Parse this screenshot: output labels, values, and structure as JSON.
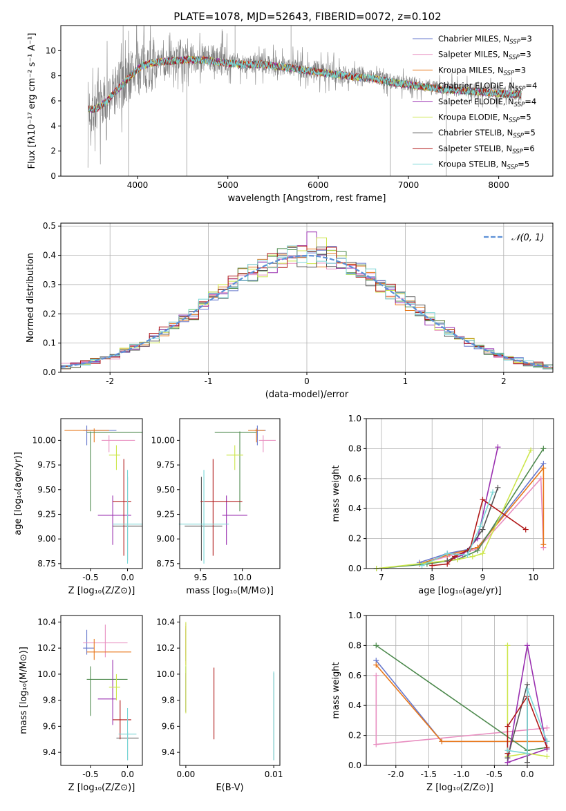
{
  "title": "PLATE=1078, MJD=52643, FIBERID=0072, z=0.102",
  "colors": [
    "#6677cc",
    "#e88ec0",
    "#e8771a",
    "#4e8a4e",
    "#9a30b0",
    "#cce64a",
    "#555555",
    "#b01818",
    "#7ad6d6"
  ],
  "chart_data": [
    {
      "type": "line",
      "panel": "spectrum",
      "title": "PLATE=1078, MJD=52643, FIBERID=0072, z=0.102",
      "xlabel": "wavelength [Angstrom, rest frame]",
      "ylabel": "Flux [f_λ10^-17 erg cm^-2 s^-1 A^-1]",
      "xlim": [
        3150,
        8600
      ],
      "ylim": [
        0,
        12
      ],
      "xticks": [
        4000,
        5000,
        6000,
        7000,
        8000
      ],
      "yticks": [
        0,
        2,
        4,
        6,
        8,
        10
      ],
      "legend_position": "right",
      "legend": [
        "Chabrier MILES, N_SSP=3",
        "Salpeter MILES, N_SSP=3",
        "Kroupa MILES, N_SSP=3",
        "Chabrier ELODIE, N_SSP=4",
        "Salpeter ELODIE, N_SSP=4",
        "Kroupa ELODIE, N_SSP=5",
        "Chabrier STELIB, N_SSP=5",
        "Salpeter STELIB, N_SSP=6",
        "Kroupa STELIB, N_SSP=5"
      ],
      "data_curve": {
        "x": [
          3450,
          3550,
          3650,
          3750,
          3850,
          3950,
          4050,
          4150,
          4250,
          4400,
          4600,
          4800,
          5000,
          5200,
          5400,
          5600,
          5800,
          6000,
          6200,
          6400,
          6600,
          6800,
          7000,
          7200,
          7400,
          7600,
          7800,
          8000,
          8200
        ],
        "y": [
          5.4,
          5.5,
          6.0,
          6.8,
          7.5,
          8.3,
          8.8,
          8.9,
          9.0,
          9.2,
          9.4,
          9.3,
          9.1,
          9.0,
          9.0,
          8.8,
          8.6,
          8.4,
          8.2,
          8.0,
          7.9,
          7.6,
          7.4,
          7.2,
          7.0,
          6.9,
          6.8,
          6.7,
          6.6
        ]
      },
      "model_curve": {
        "x": [
          3450,
          3550,
          3650,
          3750,
          3850,
          3950,
          4050,
          4150,
          4250,
          4400,
          4600,
          4800,
          5000,
          5200,
          5400,
          5600,
          5800,
          6000,
          6200,
          6400,
          6600,
          6800,
          7000,
          7200,
          7400,
          7600,
          7800,
          8000,
          8200
        ],
        "y": [
          5.3,
          5.4,
          5.9,
          6.7,
          7.4,
          8.2,
          8.8,
          9.0,
          9.1,
          9.2,
          9.3,
          9.2,
          9.0,
          8.9,
          8.9,
          8.7,
          8.5,
          8.3,
          8.1,
          7.9,
          7.8,
          7.5,
          7.3,
          7.1,
          6.9,
          6.8,
          6.7,
          6.6,
          6.5
        ]
      }
    },
    {
      "type": "histogram",
      "panel": "residuals",
      "xlabel": "(data-model)/error",
      "ylabel": "Normed distribution",
      "xlim": [
        -2.5,
        2.5
      ],
      "ylim": [
        0,
        0.51
      ],
      "xticks": [
        -2,
        -1,
        0,
        1,
        2
      ],
      "yticks": [
        0.0,
        0.1,
        0.2,
        0.3,
        0.4,
        0.5
      ],
      "grid": true,
      "legend": [
        "𝒩(0, 1)"
      ],
      "legend_position": "top-right",
      "bin_width": 0.1
    },
    {
      "type": "errorbar",
      "panel": "age-vs-Z",
      "xlabel": "Z [log10(Z/Z⊙)]",
      "ylabel": "age [log10(age/yr)]",
      "xlim": [
        -0.9,
        0.2
      ],
      "ylim": [
        8.7,
        10.22
      ],
      "xticks": [
        -0.5,
        0.0
      ],
      "yticks": [
        8.75,
        9.0,
        9.25,
        9.5,
        9.75,
        10.0
      ],
      "points": [
        {
          "x": -0.55,
          "y": 10.1,
          "xerr": [
            0.05,
            0.4
          ],
          "yerr": [
            0.15,
            0.05
          ]
        },
        {
          "x": -0.25,
          "y": 10.0,
          "xerr": [
            0.1,
            0.35
          ],
          "yerr": [
            0.12,
            0.05
          ]
        },
        {
          "x": -0.45,
          "y": 10.1,
          "xerr": [
            0.4,
            0.2
          ],
          "yerr": [
            0.12,
            0.02
          ]
        },
        {
          "x": -0.5,
          "y": 10.08,
          "xerr": [
            0.05,
            0.7
          ],
          "yerr": [
            0.8,
            0.01
          ]
        },
        {
          "x": -0.2,
          "y": 9.24,
          "xerr": [
            0.2,
            0.25
          ],
          "yerr": [
            0.3,
            0.2
          ]
        },
        {
          "x": -0.15,
          "y": 9.85,
          "xerr": [
            0.1,
            0.05
          ],
          "yerr": [
            0.15,
            0.1
          ]
        },
        {
          "x": 0.0,
          "y": 9.13,
          "xerr": [
            0.2,
            0.2
          ],
          "yerr": [
            0.35,
            0.5
          ]
        },
        {
          "x": -0.05,
          "y": 9.38,
          "xerr": [
            0.15,
            0.1
          ],
          "yerr": [
            0.55,
            0.43
          ]
        },
        {
          "x": 0.0,
          "y": 9.15,
          "xerr": [
            0.2,
            0.2
          ],
          "yerr": [
            0.4,
            0.55
          ]
        }
      ]
    },
    {
      "type": "errorbar",
      "panel": "age-vs-mass",
      "xlabel": "mass [log10(M/M⊙)]",
      "ylabel": "",
      "xlim": [
        9.25,
        10.45
      ],
      "ylim": [
        8.7,
        10.22
      ],
      "xticks": [
        9.5,
        10.0
      ],
      "yticks": [
        8.75,
        9.0,
        9.25,
        9.5,
        9.75,
        10.0
      ],
      "points": [
        {
          "x": 10.18,
          "y": 10.1,
          "xerr": [
            0.03,
            0.1
          ],
          "yerr": [
            0.15,
            0.05
          ]
        },
        {
          "x": 10.25,
          "y": 10.0,
          "xerr": [
            0.05,
            0.15
          ],
          "yerr": [
            0.12,
            0.05
          ]
        },
        {
          "x": 10.17,
          "y": 10.1,
          "xerr": [
            0.1,
            0.1
          ],
          "yerr": [
            0.12,
            0.02
          ]
        },
        {
          "x": 9.97,
          "y": 10.08,
          "xerr": [
            0.3,
            0.2
          ],
          "yerr": [
            0.8,
            0.01
          ]
        },
        {
          "x": 9.81,
          "y": 9.24,
          "xerr": [
            0.05,
            0.25
          ],
          "yerr": [
            0.3,
            0.2
          ]
        },
        {
          "x": 9.91,
          "y": 9.85,
          "xerr": [
            0.1,
            0.1
          ],
          "yerr": [
            0.15,
            0.1
          ]
        },
        {
          "x": 9.51,
          "y": 9.13,
          "xerr": [
            0.2,
            0.25
          ],
          "yerr": [
            0.35,
            0.5
          ]
        },
        {
          "x": 9.65,
          "y": 9.38,
          "xerr": [
            0.15,
            0.35
          ],
          "yerr": [
            0.55,
            0.43
          ]
        },
        {
          "x": 9.54,
          "y": 9.15,
          "xerr": [
            0.3,
            0.3
          ],
          "yerr": [
            0.4,
            0.55
          ]
        }
      ]
    },
    {
      "type": "line",
      "panel": "weight-vs-age",
      "xlabel": "age [log10(age/yr)]",
      "ylabel": "mass weight",
      "xlim": [
        6.7,
        10.4
      ],
      "ylim": [
        0,
        1.0
      ],
      "xticks": [
        7,
        8,
        9,
        10
      ],
      "yticks": [
        0.0,
        0.2,
        0.4,
        0.6,
        0.8,
        1.0
      ],
      "grid": true,
      "series": [
        {
          "x": [
            7.75,
            8.3,
            8.9,
            10.2
          ],
          "y": [
            0.04,
            0.1,
            0.14,
            0.7
          ]
        },
        {
          "x": [
            7.75,
            8.3,
            8.9,
            10.15,
            10.2
          ],
          "y": [
            0.03,
            0.08,
            0.13,
            0.6,
            0.14
          ]
        },
        {
          "x": [
            7.75,
            8.3,
            8.9,
            10.2,
            10.2
          ],
          "y": [
            0.03,
            0.09,
            0.14,
            0.67,
            0.16
          ]
        },
        {
          "x": [
            6.9,
            7.9,
            8.5,
            8.9,
            10.2
          ],
          "y": [
            0.0,
            0.03,
            0.06,
            0.12,
            0.8
          ]
        },
        {
          "x": [
            8.3,
            8.6,
            8.9,
            9.3
          ],
          "y": [
            0.05,
            0.09,
            0.2,
            0.81
          ]
        },
        {
          "x": [
            6.9,
            8.5,
            8.8,
            9.0,
            9.95
          ],
          "y": [
            0.0,
            0.06,
            0.08,
            0.1,
            0.79
          ]
        },
        {
          "x": [
            8.3,
            8.45,
            8.7,
            9.0,
            9.3
          ],
          "y": [
            0.05,
            0.08,
            0.12,
            0.26,
            0.54
          ]
        },
        {
          "x": [
            8.0,
            8.3,
            8.45,
            8.75,
            9.0,
            9.85
          ],
          "y": [
            0.02,
            0.03,
            0.08,
            0.13,
            0.46,
            0.26
          ]
        },
        {
          "x": [
            7.8,
            8.3,
            8.7,
            8.95,
            9.2
          ],
          "y": [
            0.02,
            0.1,
            0.09,
            0.28,
            0.51
          ]
        }
      ]
    },
    {
      "type": "errorbar",
      "panel": "mass-vs-Z",
      "xlabel": "Z [log10(Z/Z⊙)]",
      "ylabel": "mass [log10(M/M⊙)]",
      "xlim": [
        -0.9,
        0.2
      ],
      "ylim": [
        9.3,
        10.45
      ],
      "xticks": [
        -0.5,
        0.0
      ],
      "yticks": [
        9.4,
        9.6,
        9.8,
        10.0,
        10.2,
        10.4
      ],
      "points": [
        {
          "x": -0.55,
          "y": 10.2,
          "xerr": [
            0.05,
            0.1
          ],
          "yerr": [
            0.05,
            0.14
          ]
        },
        {
          "x": -0.3,
          "y": 10.24,
          "xerr": [
            0.3,
            0.3
          ],
          "yerr": [
            0.11,
            0.14
          ]
        },
        {
          "x": -0.45,
          "y": 10.17,
          "xerr": [
            0.1,
            0.5
          ],
          "yerr": [
            0.06,
            0.1
          ]
        },
        {
          "x": -0.5,
          "y": 9.96,
          "xerr": [
            0.05,
            0.5
          ],
          "yerr": [
            0.28,
            0.1
          ]
        },
        {
          "x": -0.2,
          "y": 9.81,
          "xerr": [
            0.2,
            0.05
          ],
          "yerr": [
            0.2,
            0.3
          ]
        },
        {
          "x": -0.15,
          "y": 9.9,
          "xerr": [
            0.1,
            0.05
          ],
          "yerr": [
            0.1,
            0.1
          ]
        },
        {
          "x": 0.0,
          "y": 9.51,
          "xerr": [
            0.15,
            0.15
          ],
          "yerr": [
            0.17,
            0.05
          ]
        },
        {
          "x": -0.1,
          "y": 9.65,
          "xerr": [
            0.1,
            0.15
          ],
          "yerr": [
            0.15,
            0.15
          ]
        },
        {
          "x": 0.0,
          "y": 9.54,
          "xerr": [
            0.12,
            0.12
          ],
          "yerr": [
            0.2,
            0.2
          ]
        }
      ]
    },
    {
      "type": "errorbar",
      "panel": "mass-vs-EBV",
      "xlabel": "E(B-V)",
      "ylabel": "",
      "xlim": [
        -0.0007,
        0.0107
      ],
      "ylim": [
        9.3,
        10.45
      ],
      "xticks": [
        0.0,
        0.01
      ],
      "yticks": [
        9.4,
        9.6,
        9.8,
        10.0,
        10.2,
        10.4
      ],
      "points": [
        {
          "x": 0.0,
          "y": 10.2,
          "yerr": [
            0.1,
            0.15
          ]
        },
        {
          "x": 0.0,
          "y": 10.24,
          "yerr": [
            0.1,
            0.15
          ]
        },
        {
          "x": 0.0,
          "y": 10.17,
          "yerr": [
            0.1,
            0.2
          ]
        },
        {
          "x": 0.0,
          "y": 9.96,
          "yerr": [
            0.25,
            0.1
          ]
        },
        {
          "x": 0.0,
          "y": 9.81,
          "yerr": [
            0.1,
            0.2
          ]
        },
        {
          "x": 0.0,
          "y": 9.9,
          "yerr": [
            0.2,
            0.5
          ]
        },
        {
          "x": 0.01,
          "y": 9.51,
          "yerr": [
            0.17,
            0.5
          ]
        },
        {
          "x": 0.0032,
          "y": 9.78,
          "yerr": [
            0.28,
            0.27
          ]
        },
        {
          "x": 0.01,
          "y": 9.54,
          "yerr": [
            0.2,
            0.48
          ]
        }
      ]
    },
    {
      "type": "line",
      "panel": "weight-vs-Z",
      "xlabel": "Z [log10(Z/Z⊙)]",
      "ylabel": "mass weight",
      "xlim": [
        -2.45,
        0.4
      ],
      "ylim": [
        0,
        1.0
      ],
      "xticks": [
        -2.0,
        -1.5,
        -1.0,
        -0.5,
        0.0
      ],
      "yticks": [
        0.0,
        0.2,
        0.4,
        0.6,
        0.8,
        1.0
      ],
      "grid": true,
      "series": [
        {
          "x": [
            -2.3,
            -1.3,
            0.3
          ],
          "y": [
            0.7,
            0.16,
            0.16
          ]
        },
        {
          "x": [
            -2.3,
            -2.3,
            0.3
          ],
          "y": [
            0.6,
            0.14,
            0.25
          ]
        },
        {
          "x": [
            -2.3,
            -1.3,
            0.3
          ],
          "y": [
            0.67,
            0.16,
            0.16
          ]
        },
        {
          "x": [
            -2.3,
            0.0,
            0.3
          ],
          "y": [
            0.8,
            0.1,
            0.12
          ]
        },
        {
          "x": [
            -0.3,
            0.0,
            0.3,
            -0.3
          ],
          "y": [
            0.02,
            0.8,
            0.11,
            0.02
          ]
        },
        {
          "x": [
            -0.3,
            -0.3,
            0.0,
            0.3
          ],
          "y": [
            0.8,
            0.06,
            0.08,
            0.06
          ]
        },
        {
          "x": [
            -0.3,
            0.0,
            0.0
          ],
          "y": [
            0.05,
            0.54,
            0.02
          ]
        },
        {
          "x": [
            -0.3,
            -0.3,
            0.0,
            0.3
          ],
          "y": [
            0.08,
            0.26,
            0.46,
            0.12
          ]
        },
        {
          "x": [
            -0.3,
            0.0,
            0.0,
            0.3
          ],
          "y": [
            0.1,
            0.08,
            0.51,
            0.16
          ]
        }
      ]
    }
  ]
}
